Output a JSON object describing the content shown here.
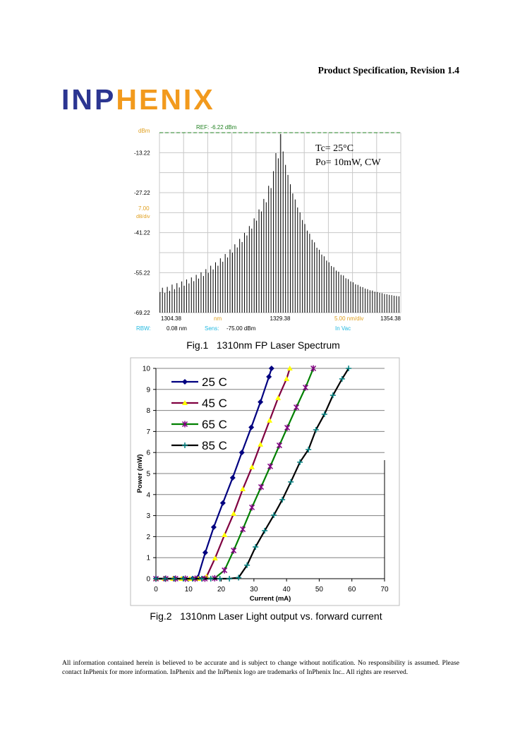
{
  "header": {
    "title": "Product Specification, Revision 1.4"
  },
  "logo": {
    "part1": "INP",
    "part2": "HENIX"
  },
  "footer": {
    "text": "All information contained herein is believed to be accurate and is subject to change without notification.  No responsibility is assumed.  Please contact InPhenix for more information.  InPhenix and the InPhenix logo are trademarks of InPhenix Inc..  All rights are reserved."
  },
  "chart_data": [
    {
      "type": "spectrum",
      "caption": "Fig.1   1310nm FP Laser Spectrum",
      "ylabel": "dBm",
      "xlabel": "nm",
      "ref": {
        "value": -6.22,
        "label": "REF: -6.22 dBm"
      },
      "ydiv": {
        "value": 7,
        "label": "7.00"
      },
      "ydiv_unit": "dB/div",
      "xdiv": {
        "value": 5,
        "label": "5.00 nm/div"
      },
      "info": [
        "RBW:",
        "0.08 nm",
        "Sens:",
        "-75.00 dBm",
        "In Vac"
      ],
      "annotations": [
        "Tc= 25°C",
        "Po= 10mW, CW"
      ],
      "xlim": [
        1304.38,
        1354.38
      ],
      "xticks": [
        1304.38,
        1329.38,
        1354.38
      ],
      "ylim": [
        -69.22,
        -6.22
      ],
      "yticks": [
        -13.22,
        -27.22,
        -41.22,
        -55.22,
        -69.22
      ],
      "grid": true,
      "color": "#000000",
      "x": [
        1304.5,
        1305.0,
        1305.5,
        1306.0,
        1306.5,
        1307.0,
        1307.5,
        1308.0,
        1308.5,
        1309.0,
        1309.5,
        1310.0,
        1310.5,
        1311.0,
        1311.5,
        1312.0,
        1312.5,
        1313.0,
        1313.5,
        1314.0,
        1314.5,
        1315.0,
        1315.5,
        1316.0,
        1316.5,
        1317.0,
        1317.5,
        1318.0,
        1318.5,
        1319.0,
        1319.5,
        1320.0,
        1320.5,
        1321.0,
        1321.5,
        1322.0,
        1322.5,
        1323.0,
        1323.5,
        1324.0,
        1324.5,
        1325.0,
        1325.5,
        1326.0,
        1326.5,
        1327.0,
        1327.5,
        1328.0,
        1328.5,
        1329.0,
        1329.5,
        1330.0,
        1330.5,
        1331.0,
        1331.5,
        1332.0,
        1332.5,
        1333.0,
        1333.5,
        1334.0,
        1334.5,
        1335.0,
        1335.5,
        1336.0,
        1336.5,
        1337.0,
        1337.5,
        1338.0,
        1338.5,
        1339.0,
        1339.5,
        1340.0,
        1340.5,
        1341.0,
        1341.5,
        1342.0,
        1342.5,
        1343.0,
        1343.5,
        1344.0,
        1344.5,
        1345.0,
        1345.5,
        1346.0,
        1346.5,
        1347.0,
        1347.5,
        1348.0,
        1348.5,
        1349.0,
        1349.5,
        1350.0,
        1350.5,
        1351.0,
        1351.5,
        1352.0,
        1352.5,
        1353.0,
        1353.5,
        1354.0
      ],
      "values": [
        -62.0,
        -60.5,
        -62.3,
        -60.2,
        -61.6,
        -59.4,
        -61.0,
        -58.9,
        -60.4,
        -58.3,
        -59.8,
        -57.6,
        -59.0,
        -56.9,
        -58.2,
        -56.0,
        -57.3,
        -55.1,
        -56.4,
        -54.0,
        -55.3,
        -52.8,
        -54.1,
        -51.6,
        -52.8,
        -50.2,
        -51.4,
        -48.7,
        -49.9,
        -47.1,
        -48.2,
        -45.3,
        -46.4,
        -43.4,
        -44.5,
        -41.3,
        -42.2,
        -38.9,
        -39.8,
        -36.2,
        -37.0,
        -33.1,
        -33.8,
        -29.4,
        -30.6,
        -24.8,
        -25.6,
        -19.7,
        -13.4,
        -15.2,
        -6.7,
        -12.8,
        -17.5,
        -21.0,
        -24.3,
        -27.5,
        -29.6,
        -32.4,
        -34.1,
        -36.8,
        -38.2,
        -40.5,
        -41.6,
        -43.7,
        -44.6,
        -46.5,
        -47.2,
        -48.9,
        -49.5,
        -51.0,
        -51.6,
        -52.9,
        -53.3,
        -54.5,
        -54.9,
        -56.0,
        -56.2,
        -57.2,
        -57.5,
        -58.3,
        -58.6,
        -59.3,
        -59.5,
        -60.1,
        -60.3,
        -60.8,
        -61.0,
        -61.4,
        -61.5,
        -61.9,
        -62.0,
        -62.3,
        -62.4,
        -62.7,
        -62.8,
        -63.0,
        -63.1,
        -63.3,
        -63.4,
        -63.5
      ]
    },
    {
      "type": "line",
      "caption": "Fig.2   1310nm Laser Light output vs. forward current",
      "xlabel": "Current (mA)",
      "ylabel": "Power (mW)",
      "xlim": [
        0,
        70
      ],
      "xticks": [
        0,
        10,
        20,
        30,
        40,
        50,
        60,
        70
      ],
      "ylim": [
        0,
        10
      ],
      "yticks": [
        0,
        1,
        2,
        3,
        4,
        5,
        6,
        7,
        8,
        9,
        10
      ],
      "grid": true,
      "legend": "upper-left",
      "series": [
        {
          "name": "25 C",
          "color": "#000080",
          "marker": "diamond",
          "marker_color": "#000080",
          "x": [
            0,
            2.8,
            5.6,
            8.4,
            11.2,
            12.8,
            15.1,
            17.7,
            20.5,
            23.5,
            26.3,
            29.2,
            32.0,
            34.6,
            35.4
          ],
          "values": [
            0,
            0,
            0,
            0,
            0,
            0.05,
            1.24,
            2.45,
            3.6,
            4.8,
            6.0,
            7.2,
            8.4,
            9.6,
            10
          ]
        },
        {
          "name": "45 C",
          "color": "#800040",
          "marker": "triangle",
          "marker_color": "#ffff00",
          "x": [
            0,
            2.6,
            5.2,
            7.8,
            10.4,
            13.0,
            15.5,
            18.1,
            21.0,
            23.8,
            26.6,
            29.4,
            32.0,
            34.8,
            37.4,
            40.0,
            41.0
          ],
          "values": [
            0,
            0,
            0,
            0,
            0,
            0,
            0.1,
            0.97,
            2.08,
            3.09,
            4.26,
            5.3,
            6.38,
            7.52,
            8.59,
            9.5,
            10
          ]
        },
        {
          "name": "65 C",
          "color": "#008000",
          "marker": "star",
          "marker_color": "#800080",
          "x": [
            0,
            3.0,
            6.0,
            9.0,
            12.0,
            15.0,
            18.0,
            21.0,
            23.8,
            26.6,
            29.4,
            32.2,
            35.0,
            37.8,
            40.2,
            43.0,
            45.8,
            48.2
          ],
          "values": [
            0,
            0,
            0,
            0,
            0,
            0,
            0.02,
            0.4,
            1.34,
            2.35,
            3.39,
            4.36,
            5.34,
            6.34,
            7.18,
            8.15,
            9.09,
            10
          ]
        },
        {
          "name": "85 C",
          "color": "#000000",
          "marker": "plus",
          "marker_color": "#008080",
          "x": [
            0,
            2.8,
            5.6,
            8.4,
            11.2,
            14.0,
            16.8,
            19.6,
            22.5,
            25.3,
            27.9,
            30.5,
            33.3,
            36.1,
            38.7,
            41.3,
            44.1,
            46.7,
            49.0,
            51.6,
            54.2,
            57.0,
            59.0
          ],
          "values": [
            0,
            0,
            0,
            0,
            0,
            0,
            0,
            0,
            0,
            0.05,
            0.64,
            1.51,
            2.28,
            3.02,
            3.76,
            4.6,
            5.54,
            6.14,
            7.08,
            7.82,
            8.72,
            9.5,
            10
          ]
        }
      ]
    }
  ]
}
